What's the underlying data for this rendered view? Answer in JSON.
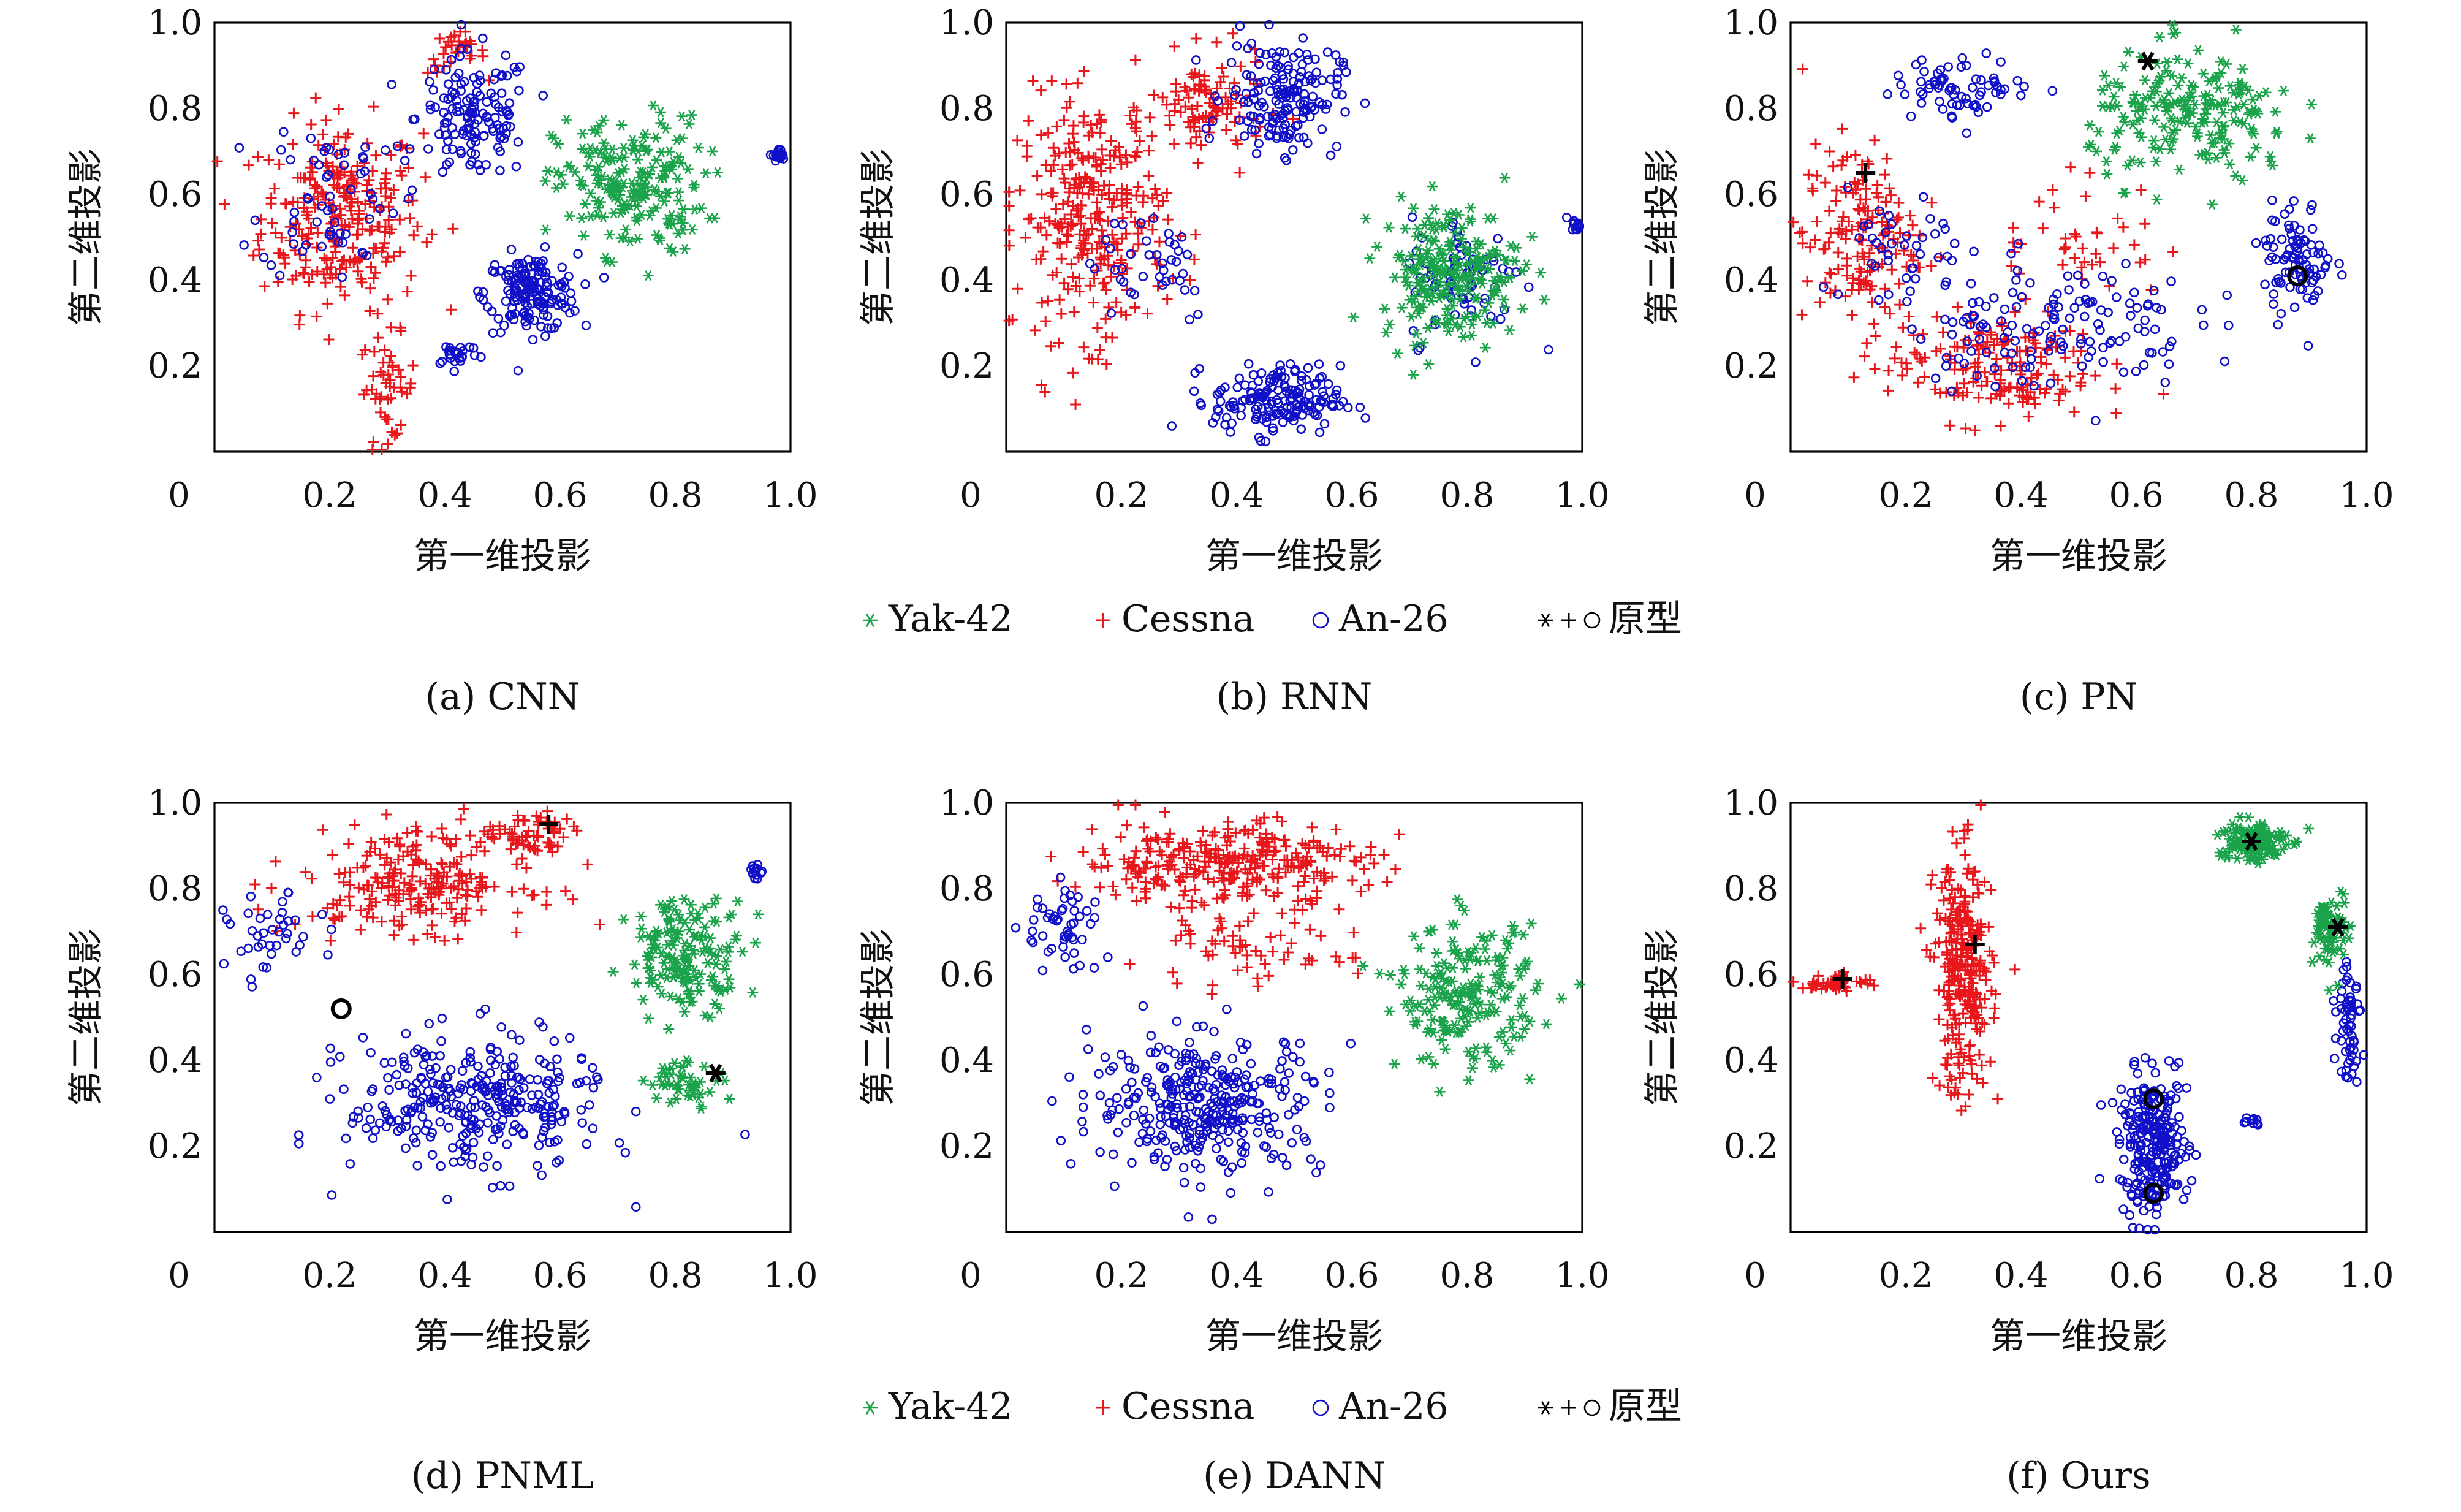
{
  "colors": {
    "yak": "#1aa34a",
    "cessna": "#e8171c",
    "an": "#1010c8",
    "prototype": "#000000"
  },
  "legend": {
    "items": [
      {
        "symbol": "*",
        "label": "Yak-42",
        "color_key": "yak"
      },
      {
        "symbol": "+",
        "label": "Cessna",
        "color_key": "cessna"
      },
      {
        "symbol": "o",
        "label": "An-26",
        "color_key": "an"
      },
      {
        "symbol": "*+o",
        "label": "原型",
        "color_key": "prototype"
      }
    ]
  },
  "chart_data": [
    {
      "type": "scatter",
      "caption": "(a) CNN",
      "xlabel": "第一维投影",
      "ylabel": "第二维投影",
      "xlim": [
        0,
        1
      ],
      "ylim": [
        0,
        1
      ],
      "xticks": [
        "0",
        "0.2",
        "0.4",
        "0.6",
        "0.8",
        "1.0"
      ],
      "yticks": [
        "0.2",
        "0.4",
        "0.6",
        "0.8",
        "1.0"
      ],
      "clusters": [
        {
          "cls": "cessna",
          "cx": 0.22,
          "cy": 0.55,
          "rx": 0.14,
          "ry": 0.22,
          "n": 260
        },
        {
          "cls": "cessna",
          "cx": 0.3,
          "cy": 0.15,
          "rx": 0.05,
          "ry": 0.12,
          "n": 50
        },
        {
          "cls": "cessna",
          "cx": 0.42,
          "cy": 0.93,
          "rx": 0.05,
          "ry": 0.05,
          "n": 30
        },
        {
          "cls": "an",
          "cx": 0.45,
          "cy": 0.78,
          "rx": 0.1,
          "ry": 0.15,
          "n": 140
        },
        {
          "cls": "an",
          "cx": 0.55,
          "cy": 0.37,
          "rx": 0.08,
          "ry": 0.09,
          "n": 160
        },
        {
          "cls": "an",
          "cx": 0.42,
          "cy": 0.23,
          "rx": 0.04,
          "ry": 0.03,
          "n": 25
        },
        {
          "cls": "an",
          "cx": 0.98,
          "cy": 0.69,
          "rx": 0.01,
          "ry": 0.015,
          "n": 25
        },
        {
          "cls": "an",
          "cx": 0.2,
          "cy": 0.6,
          "rx": 0.12,
          "ry": 0.2,
          "n": 60
        },
        {
          "cls": "yak",
          "cx": 0.72,
          "cy": 0.62,
          "rx": 0.13,
          "ry": 0.16,
          "n": 200
        }
      ],
      "prototypes": []
    },
    {
      "type": "scatter",
      "caption": "(b) RNN",
      "xlabel": "第一维投影",
      "ylabel": "第二维投影",
      "xlim": [
        0,
        1
      ],
      "ylim": [
        0,
        1
      ],
      "xticks": [
        "0",
        "0.2",
        "0.4",
        "0.6",
        "0.8",
        "1.0"
      ],
      "yticks": [
        "0.2",
        "0.4",
        "0.6",
        "0.8",
        "1.0"
      ],
      "clusters": [
        {
          "cls": "cessna",
          "cx": 0.15,
          "cy": 0.55,
          "rx": 0.13,
          "ry": 0.28,
          "n": 300
        },
        {
          "cls": "cessna",
          "cx": 0.35,
          "cy": 0.8,
          "rx": 0.1,
          "ry": 0.12,
          "n": 100
        },
        {
          "cls": "an",
          "cx": 0.48,
          "cy": 0.83,
          "rx": 0.1,
          "ry": 0.13,
          "n": 170
        },
        {
          "cls": "an",
          "cx": 0.47,
          "cy": 0.12,
          "rx": 0.11,
          "ry": 0.08,
          "n": 170
        },
        {
          "cls": "an",
          "cx": 0.25,
          "cy": 0.45,
          "rx": 0.12,
          "ry": 0.15,
          "n": 40
        },
        {
          "cls": "an",
          "cx": 0.8,
          "cy": 0.4,
          "rx": 0.1,
          "ry": 0.15,
          "n": 70
        },
        {
          "cls": "an",
          "cx": 0.99,
          "cy": 0.53,
          "rx": 0.01,
          "ry": 0.015,
          "n": 15
        },
        {
          "cls": "yak",
          "cx": 0.77,
          "cy": 0.42,
          "rx": 0.12,
          "ry": 0.16,
          "n": 220
        }
      ],
      "prototypes": []
    },
    {
      "type": "scatter",
      "caption": "(c) PN",
      "xlabel": "第一维投影",
      "ylabel": "第二维投影",
      "xlim": [
        0,
        1
      ],
      "ylim": [
        0,
        1
      ],
      "xticks": [
        "0",
        "0.2",
        "0.4",
        "0.6",
        "0.8",
        "1.0"
      ],
      "yticks": [
        "0.2",
        "0.4",
        "0.6",
        "0.8",
        "1.0"
      ],
      "clusters": [
        {
          "cls": "cessna",
          "cx": 0.12,
          "cy": 0.5,
          "rx": 0.1,
          "ry": 0.22,
          "n": 160
        },
        {
          "cls": "cessna",
          "cx": 0.35,
          "cy": 0.2,
          "rx": 0.18,
          "ry": 0.13,
          "n": 170
        },
        {
          "cls": "cessna",
          "cx": 0.5,
          "cy": 0.5,
          "rx": 0.15,
          "ry": 0.15,
          "n": 40
        },
        {
          "cls": "an",
          "cx": 0.3,
          "cy": 0.85,
          "rx": 0.12,
          "ry": 0.07,
          "n": 70
        },
        {
          "cls": "an",
          "cx": 0.45,
          "cy": 0.3,
          "rx": 0.25,
          "ry": 0.15,
          "n": 140
        },
        {
          "cls": "an",
          "cx": 0.88,
          "cy": 0.45,
          "rx": 0.06,
          "ry": 0.13,
          "n": 90
        },
        {
          "cls": "an",
          "cx": 0.2,
          "cy": 0.45,
          "rx": 0.1,
          "ry": 0.15,
          "n": 40
        },
        {
          "cls": "yak",
          "cx": 0.7,
          "cy": 0.78,
          "rx": 0.18,
          "ry": 0.15,
          "n": 200
        }
      ],
      "prototypes": [
        {
          "symbol": "*",
          "x": 0.62,
          "y": 0.91
        },
        {
          "symbol": "+",
          "x": 0.13,
          "y": 0.65
        },
        {
          "symbol": "o",
          "x": 0.88,
          "y": 0.41
        }
      ]
    },
    {
      "type": "scatter",
      "caption": "(d) PNML",
      "xlabel": "第一维投影",
      "ylabel": "第二维投影",
      "xlim": [
        0,
        1
      ],
      "ylim": [
        0,
        1
      ],
      "xticks": [
        "0",
        "0.2",
        "0.4",
        "0.6",
        "0.8",
        "1.0"
      ],
      "yticks": [
        "0.2",
        "0.4",
        "0.6",
        "0.8",
        "1.0"
      ],
      "clusters": [
        {
          "cls": "cessna",
          "cx": 0.35,
          "cy": 0.82,
          "rx": 0.2,
          "ry": 0.12,
          "n": 230
        },
        {
          "cls": "cessna",
          "cx": 0.55,
          "cy": 0.92,
          "rx": 0.07,
          "ry": 0.06,
          "n": 60
        },
        {
          "cls": "an",
          "cx": 0.45,
          "cy": 0.3,
          "rx": 0.22,
          "ry": 0.16,
          "n": 320
        },
        {
          "cls": "an",
          "cx": 0.1,
          "cy": 0.68,
          "rx": 0.08,
          "ry": 0.1,
          "n": 40
        },
        {
          "cls": "an",
          "cx": 0.94,
          "cy": 0.84,
          "rx": 0.01,
          "ry": 0.015,
          "n": 15
        },
        {
          "cls": "yak",
          "cx": 0.82,
          "cy": 0.65,
          "rx": 0.1,
          "ry": 0.13,
          "n": 160
        },
        {
          "cls": "yak",
          "cx": 0.82,
          "cy": 0.35,
          "rx": 0.07,
          "ry": 0.05,
          "n": 50
        }
      ],
      "prototypes": [
        {
          "symbol": "+",
          "x": 0.58,
          "y": 0.95
        },
        {
          "symbol": "o",
          "x": 0.22,
          "y": 0.52
        },
        {
          "symbol": "*",
          "x": 0.87,
          "y": 0.37
        }
      ]
    },
    {
      "type": "scatter",
      "caption": "(e) DANN",
      "xlabel": "第一维投影",
      "ylabel": "第二维投影",
      "xlim": [
        0,
        1
      ],
      "ylim": [
        0,
        1
      ],
      "xticks": [
        "0",
        "0.2",
        "0.4",
        "0.6",
        "0.8",
        "1.0"
      ],
      "yticks": [
        "0.2",
        "0.4",
        "0.6",
        "0.8",
        "1.0"
      ],
      "clusters": [
        {
          "cls": "cessna",
          "cx": 0.38,
          "cy": 0.86,
          "rx": 0.25,
          "ry": 0.1,
          "n": 300
        },
        {
          "cls": "cessna",
          "cx": 0.4,
          "cy": 0.65,
          "rx": 0.2,
          "ry": 0.08,
          "n": 60
        },
        {
          "cls": "an",
          "cx": 0.35,
          "cy": 0.3,
          "rx": 0.2,
          "ry": 0.16,
          "n": 340
        },
        {
          "cls": "an",
          "cx": 0.1,
          "cy": 0.7,
          "rx": 0.07,
          "ry": 0.12,
          "n": 50
        },
        {
          "cls": "yak",
          "cx": 0.8,
          "cy": 0.55,
          "rx": 0.12,
          "ry": 0.16,
          "n": 200
        }
      ],
      "prototypes": []
    },
    {
      "type": "scatter",
      "caption": "(f) Ours",
      "xlabel": "第一维投影",
      "ylabel": "第二维投影",
      "xlim": [
        0,
        1
      ],
      "ylim": [
        0,
        1
      ],
      "xticks": [
        "0",
        "0.2",
        "0.4",
        "0.6",
        "0.8",
        "1.0"
      ],
      "yticks": [
        "0.2",
        "0.4",
        "0.6",
        "0.8",
        "1.0"
      ],
      "clusters": [
        {
          "cls": "cessna",
          "cx": 0.3,
          "cy": 0.6,
          "rx": 0.05,
          "ry": 0.28,
          "n": 280
        },
        {
          "cls": "cessna",
          "cx": 0.08,
          "cy": 0.58,
          "rx": 0.06,
          "ry": 0.02,
          "n": 50
        },
        {
          "cls": "an",
          "cx": 0.63,
          "cy": 0.2,
          "rx": 0.06,
          "ry": 0.16,
          "n": 260
        },
        {
          "cls": "an",
          "cx": 0.97,
          "cy": 0.5,
          "rx": 0.02,
          "ry": 0.15,
          "n": 60
        },
        {
          "cls": "an",
          "cx": 0.8,
          "cy": 0.26,
          "rx": 0.02,
          "ry": 0.01,
          "n": 10
        },
        {
          "cls": "yak",
          "cx": 0.8,
          "cy": 0.91,
          "rx": 0.06,
          "ry": 0.05,
          "n": 130
        },
        {
          "cls": "yak",
          "cx": 0.94,
          "cy": 0.7,
          "rx": 0.03,
          "ry": 0.1,
          "n": 70
        }
      ],
      "prototypes": [
        {
          "symbol": "+",
          "x": 0.09,
          "y": 0.59
        },
        {
          "symbol": "+",
          "x": 0.32,
          "y": 0.67
        },
        {
          "symbol": "*",
          "x": 0.8,
          "y": 0.91
        },
        {
          "symbol": "*",
          "x": 0.95,
          "y": 0.71
        },
        {
          "symbol": "o",
          "x": 0.63,
          "y": 0.31
        },
        {
          "symbol": "o",
          "x": 0.63,
          "y": 0.09
        }
      ]
    }
  ]
}
